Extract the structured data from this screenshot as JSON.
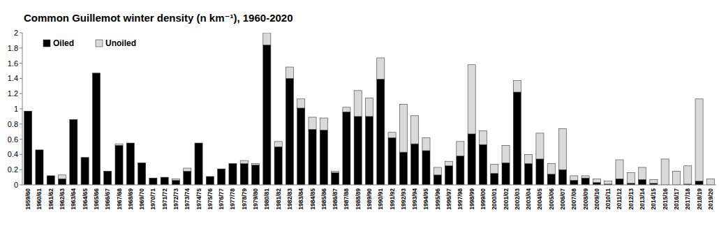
{
  "chart_data": {
    "type": "bar",
    "title": "Common Guillemot winter density (n km⁻¹), 1960-2020",
    "stacked": true,
    "legend": "upper left",
    "grid": false,
    "categories": [
      "1959/60",
      "1960/61",
      "1961/62",
      "1962/63",
      "1963/64",
      "1964/65",
      "1965/66",
      "1966/67",
      "1967/68",
      "1968/69",
      "1969/70",
      "1970/71",
      "1971/72",
      "1972/73",
      "1973/74",
      "1974/75",
      "1975/76",
      "1976/77",
      "1977/78",
      "1978/79",
      "1979/80",
      "1980/81",
      "1981/82",
      "1982/83",
      "1983/84",
      "1984/85",
      "1985/86",
      "1986/87",
      "1987/88",
      "1988/89",
      "1989/90",
      "1990/91",
      "1991/92",
      "1992/93",
      "1993/94",
      "1994/95",
      "1995/96",
      "1996/97",
      "1997/98",
      "1998/99",
      "1999/00",
      "2000/01",
      "2001/02",
      "2002/03",
      "2003/04",
      "2004/05",
      "2005/06",
      "2006/07",
      "2007/08",
      "2008/09",
      "2009/10",
      "2010/11",
      "2011/12",
      "2012/13",
      "2013/14",
      "2014/15",
      "2015/16",
      "2016/17",
      "2017/18",
      "2018/19",
      "2019/20"
    ],
    "series": [
      {
        "name": "Oiled",
        "color": "#000000",
        "values": [
          0.97,
          0.46,
          0.12,
          0.08,
          0.86,
          0.36,
          1.47,
          0.18,
          0.52,
          0.55,
          0.29,
          0.09,
          0.1,
          0.06,
          0.18,
          0.55,
          0.11,
          0.21,
          0.28,
          0.28,
          0.26,
          1.84,
          0.5,
          1.4,
          1.01,
          0.73,
          0.72,
          0.16,
          0.96,
          0.9,
          0.9,
          1.39,
          0.62,
          0.43,
          0.54,
          0.45,
          0.13,
          0.25,
          0.38,
          0.67,
          0.53,
          0.15,
          0.29,
          1.22,
          0.28,
          0.34,
          0.14,
          0.2,
          0.06,
          0.09,
          0.03,
          0.01,
          0.08,
          0.02,
          0.07,
          0.02,
          0,
          0,
          0.01,
          0.05,
          0
        ]
      },
      {
        "name": "Unoiled",
        "color": "#d9d9d9",
        "values": [
          0,
          0,
          0,
          0.05,
          0,
          0,
          0,
          0,
          0.02,
          0,
          0,
          0,
          0,
          0.02,
          0.04,
          0,
          0,
          0,
          0,
          0.04,
          0.02,
          0.16,
          0.07,
          0.15,
          0.12,
          0.16,
          0.16,
          0.02,
          0.06,
          0.34,
          0.24,
          0.28,
          0.07,
          0.63,
          0.37,
          0.17,
          0.1,
          0.06,
          0.19,
          0.91,
          0.18,
          0.12,
          0.23,
          0.15,
          0.12,
          0.34,
          0.14,
          0.54,
          0.06,
          0.03,
          0.05,
          0.04,
          0.25,
          0.14,
          0.16,
          0.05,
          0.34,
          0.18,
          0.24,
          1.08,
          0.08
        ]
      }
    ],
    "ylim": [
      0,
      2
    ],
    "yticks": [
      0,
      0.2,
      0.4,
      0.6,
      0.8,
      1,
      1.2,
      1.4,
      1.6,
      1.8,
      2
    ]
  }
}
